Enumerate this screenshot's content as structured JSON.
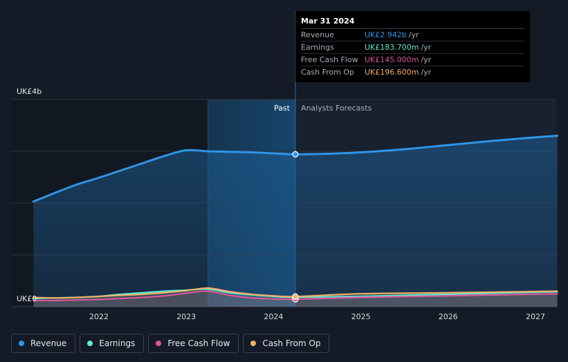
{
  "chart_data": {
    "type": "area",
    "y_axis_label_top": "UK£4b",
    "y_axis_label_bottom": "UK£0",
    "ylim": [
      0,
      4
    ],
    "unit": "UK£b",
    "x_ticks": [
      "2022",
      "2023",
      "2024",
      "2025",
      "2026",
      "2027"
    ],
    "x_range": [
      2021.25,
      2027.25
    ],
    "past_label": "Past",
    "forecast_label": "Analysts Forecasts",
    "forecast_start": 2024.25,
    "shaded_period": [
      2023.25,
      2024.25
    ],
    "series": [
      {
        "name": "Revenue",
        "color": "#2f95e8",
        "points": [
          [
            2021.25,
            2.03
          ],
          [
            2021.5,
            2.2
          ],
          [
            2021.75,
            2.36
          ],
          [
            2022.0,
            2.49
          ],
          [
            2022.25,
            2.63
          ],
          [
            2022.5,
            2.77
          ],
          [
            2022.75,
            2.91
          ],
          [
            2023.0,
            3.02
          ],
          [
            2023.25,
            3.0
          ],
          [
            2023.5,
            2.99
          ],
          [
            2023.75,
            2.98
          ],
          [
            2024.0,
            2.96
          ],
          [
            2024.25,
            2.942
          ]
        ],
        "forecast": [
          [
            2024.25,
            2.942
          ],
          [
            2024.75,
            2.96
          ],
          [
            2025.0,
            2.98
          ],
          [
            2025.5,
            3.04
          ],
          [
            2026.0,
            3.12
          ],
          [
            2026.5,
            3.2
          ],
          [
            2027.0,
            3.27
          ],
          [
            2027.25,
            3.3
          ]
        ]
      },
      {
        "name": "Earnings",
        "color": "#5eead4",
        "points": [
          [
            2021.25,
            0.16
          ],
          [
            2021.5,
            0.17
          ],
          [
            2021.75,
            0.18
          ],
          [
            2022.0,
            0.2
          ],
          [
            2022.25,
            0.24
          ],
          [
            2022.5,
            0.27
          ],
          [
            2022.75,
            0.3
          ],
          [
            2023.0,
            0.32
          ],
          [
            2023.25,
            0.34
          ],
          [
            2023.5,
            0.27
          ],
          [
            2023.75,
            0.23
          ],
          [
            2024.0,
            0.2
          ],
          [
            2024.25,
            0.1837
          ]
        ],
        "forecast": [
          [
            2024.25,
            0.1837
          ],
          [
            2025.0,
            0.2
          ],
          [
            2026.0,
            0.24
          ],
          [
            2027.25,
            0.29
          ]
        ]
      },
      {
        "name": "Free Cash Flow",
        "color": "#d9569a",
        "points": [
          [
            2021.25,
            0.12
          ],
          [
            2021.5,
            0.12
          ],
          [
            2021.75,
            0.13
          ],
          [
            2022.0,
            0.14
          ],
          [
            2022.25,
            0.16
          ],
          [
            2022.5,
            0.18
          ],
          [
            2022.75,
            0.21
          ],
          [
            2023.0,
            0.26
          ],
          [
            2023.25,
            0.3
          ],
          [
            2023.5,
            0.22
          ],
          [
            2023.75,
            0.17
          ],
          [
            2024.0,
            0.15
          ],
          [
            2024.25,
            0.145
          ]
        ],
        "forecast": [
          [
            2024.25,
            0.145
          ],
          [
            2025.0,
            0.18
          ],
          [
            2026.0,
            0.21
          ],
          [
            2027.25,
            0.25
          ]
        ]
      },
      {
        "name": "Cash From Op",
        "color": "#f0b068",
        "points": [
          [
            2021.25,
            0.18
          ],
          [
            2021.5,
            0.17
          ],
          [
            2021.75,
            0.18
          ],
          [
            2022.0,
            0.2
          ],
          [
            2022.25,
            0.22
          ],
          [
            2022.5,
            0.24
          ],
          [
            2022.75,
            0.27
          ],
          [
            2023.0,
            0.31
          ],
          [
            2023.25,
            0.36
          ],
          [
            2023.5,
            0.29
          ],
          [
            2023.75,
            0.24
          ],
          [
            2024.0,
            0.21
          ],
          [
            2024.25,
            0.1966
          ]
        ],
        "forecast": [
          [
            2024.25,
            0.1966
          ],
          [
            2025.0,
            0.25
          ],
          [
            2026.0,
            0.27
          ],
          [
            2027.25,
            0.3
          ]
        ]
      }
    ],
    "grid": true
  },
  "tooltip": {
    "date": "Mar 31 2024",
    "rows": [
      {
        "label": "Revenue",
        "value": "UK£2.942b",
        "unit": "/yr",
        "color": "#2f95e8"
      },
      {
        "label": "Earnings",
        "value": "UK£183.700m",
        "unit": "/yr",
        "color": "#5eead4"
      },
      {
        "label": "Free Cash Flow",
        "value": "UK£145.000m",
        "unit": "/yr",
        "color": "#d9569a"
      },
      {
        "label": "Cash From Op",
        "value": "UK£196.600m",
        "unit": "/yr",
        "color": "#f0b068"
      }
    ]
  },
  "legend": [
    {
      "label": "Revenue",
      "color": "#2f95e8"
    },
    {
      "label": "Earnings",
      "color": "#5eead4"
    },
    {
      "label": "Free Cash Flow",
      "color": "#d9569a"
    },
    {
      "label": "Cash From Op",
      "color": "#f0b068"
    }
  ]
}
